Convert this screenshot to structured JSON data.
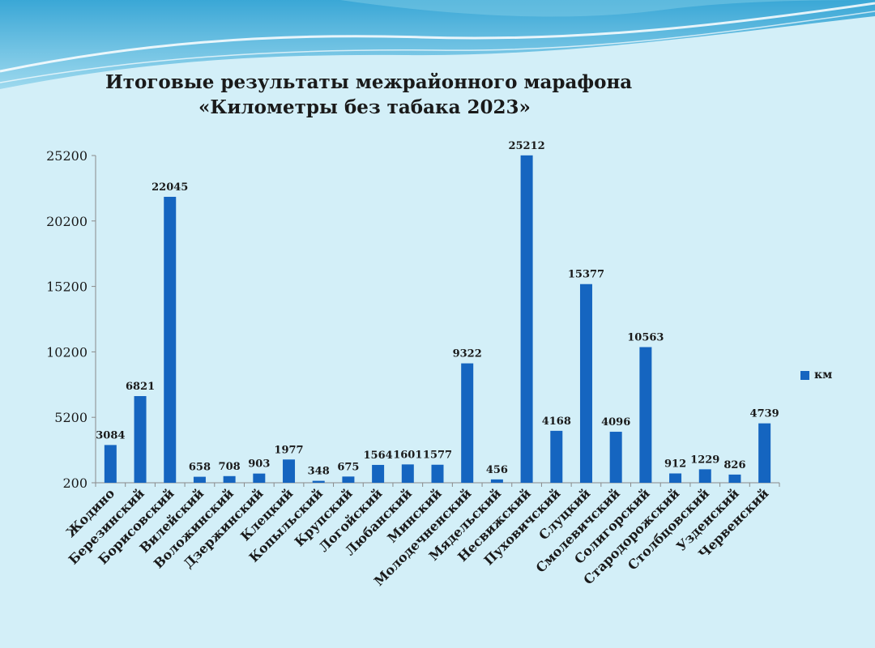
{
  "title": {
    "line1": "Итоговые результаты межрайонного марафона",
    "line2": "«Километры без табака 2023»"
  },
  "legend": {
    "label": "км"
  },
  "colors": {
    "bar": "#1565c0",
    "background": "#d3eff8",
    "wave": "#2f9ed0"
  },
  "chart_data": {
    "type": "bar",
    "categories": [
      "Жодино",
      "Березинский",
      "Борисовский",
      "Вилейский",
      "Воложинский",
      "Дзержинский",
      "Клецкий",
      "Копыльский",
      "Крупский",
      "Логойский",
      "Любанский",
      "Минский",
      "Молодечненский",
      "Мядельский",
      "Несвижский",
      "Пуховичский",
      "Слуцкий",
      "Смолевичский",
      "Солигорский",
      "Стародорожский",
      "Столбцовский",
      "Узденский",
      "Червенский"
    ],
    "series": [
      {
        "name": "км",
        "values": [
          3084,
          6821,
          22045,
          658,
          708,
          903,
          1977,
          348,
          675,
          1564,
          1601,
          1577,
          9322,
          456,
          25212,
          4168,
          15377,
          4096,
          10563,
          912,
          1229,
          826,
          4739
        ]
      }
    ],
    "ylim": [
      200,
      25200
    ],
    "yticks": [
      "200",
      "5200",
      "10200",
      "15200",
      "20200",
      "25200"
    ],
    "legend_position": "right",
    "grid": false
  }
}
